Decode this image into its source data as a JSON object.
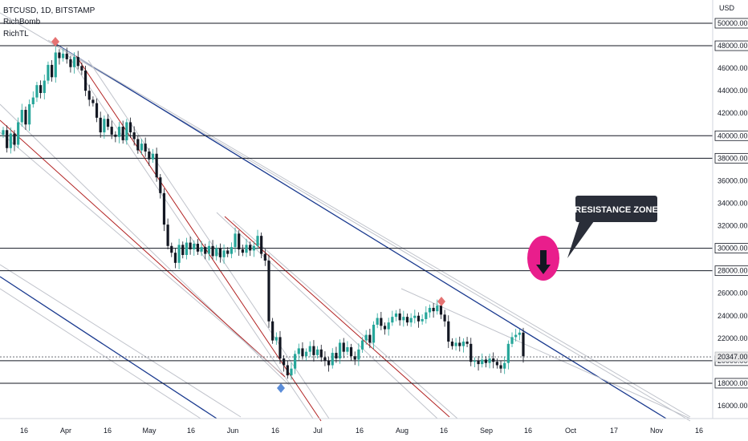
{
  "header": {
    "symbol": "BTCUSD, 1D, BITSTAMP",
    "indicators": [
      "RichBomb",
      "RichTL"
    ]
  },
  "chart_data": {
    "type": "candlestick",
    "currency": "USD",
    "x_ticks": [
      "16",
      "Apr",
      "16",
      "May",
      "16",
      "Jun",
      "16",
      "Jul",
      "16",
      "Aug",
      "16",
      "Sep",
      "16",
      "Oct",
      "17",
      "Nov",
      "16"
    ],
    "y_ticks": [
      "16000.00",
      "18000.00",
      "20000.00",
      "22000.00",
      "24000.00",
      "26000.00",
      "28000.00",
      "30000.00",
      "32000.00",
      "34000.00",
      "36000.00",
      "38000.00",
      "40000.00",
      "42000.00",
      "44000.00",
      "46000.00",
      "48000.00",
      "50000.00"
    ],
    "highlighted_levels": [
      "50000.00",
      "48000.00",
      "40000.00",
      "38000.00",
      "30000.00",
      "28000.00",
      "20000.00",
      "18000.00"
    ],
    "last_price": "20347.00",
    "annotation": "RESISTANCE ZONE",
    "colors": {
      "up": "#26a69a",
      "down": "#131722",
      "blue_channel": "#1a3a8f",
      "red_channel": "#b22222",
      "zone": "#e91e8c",
      "marker_red": "#e57373",
      "marker_blue": "#5b8dd9"
    }
  }
}
